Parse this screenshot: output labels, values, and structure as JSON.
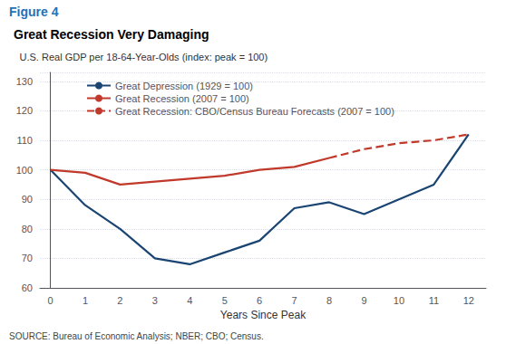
{
  "chart_data": {
    "type": "line",
    "title": "Great Recession Very Damaging",
    "annotations": [
      "Figure 4",
      "SOURCE: Bureau of Economic Analysis; NBER; CBO; Census."
    ],
    "xlabel": "Years Since Peak",
    "ylabel": "U.S. Real GDP per 18-64-Year-Olds (index: peak = 100)",
    "xlim": [
      -0.3,
      12.5
    ],
    "xticks": [
      0,
      1,
      2,
      3,
      4,
      5,
      6,
      7,
      8,
      9,
      10,
      11,
      12
    ],
    "ylim": [
      60,
      133
    ],
    "yticks": [
      60,
      70,
      80,
      90,
      100,
      110,
      120,
      130
    ],
    "grid": true,
    "legend": "upper left",
    "series": [
      {
        "name": "Great Depression (1929 = 100)",
        "color": "#1a4472",
        "line_style": "solid",
        "x": [
          0,
          1,
          2,
          3,
          4,
          5,
          6,
          7,
          8,
          9,
          10,
          11,
          12
        ],
        "values": [
          100,
          88,
          80,
          70,
          68,
          72,
          76,
          87,
          89,
          85,
          90,
          95,
          112
        ]
      },
      {
        "name": "Great Recession (2007 = 100)",
        "color": "#c0392b",
        "line_style": "solid",
        "x": [
          0,
          1,
          2,
          3,
          4,
          5,
          6,
          7,
          8
        ],
        "values": [
          100,
          99,
          95,
          96,
          97,
          98,
          100,
          101,
          104
        ]
      },
      {
        "name": "Great Recession: CBO/Census Bureau Forecasts (2007 = 100)",
        "color": "#c0392b",
        "line_style": "dashed",
        "x": [
          8,
          9,
          10,
          11,
          12
        ],
        "values": [
          104,
          107,
          109,
          110,
          112
        ]
      }
    ]
  }
}
